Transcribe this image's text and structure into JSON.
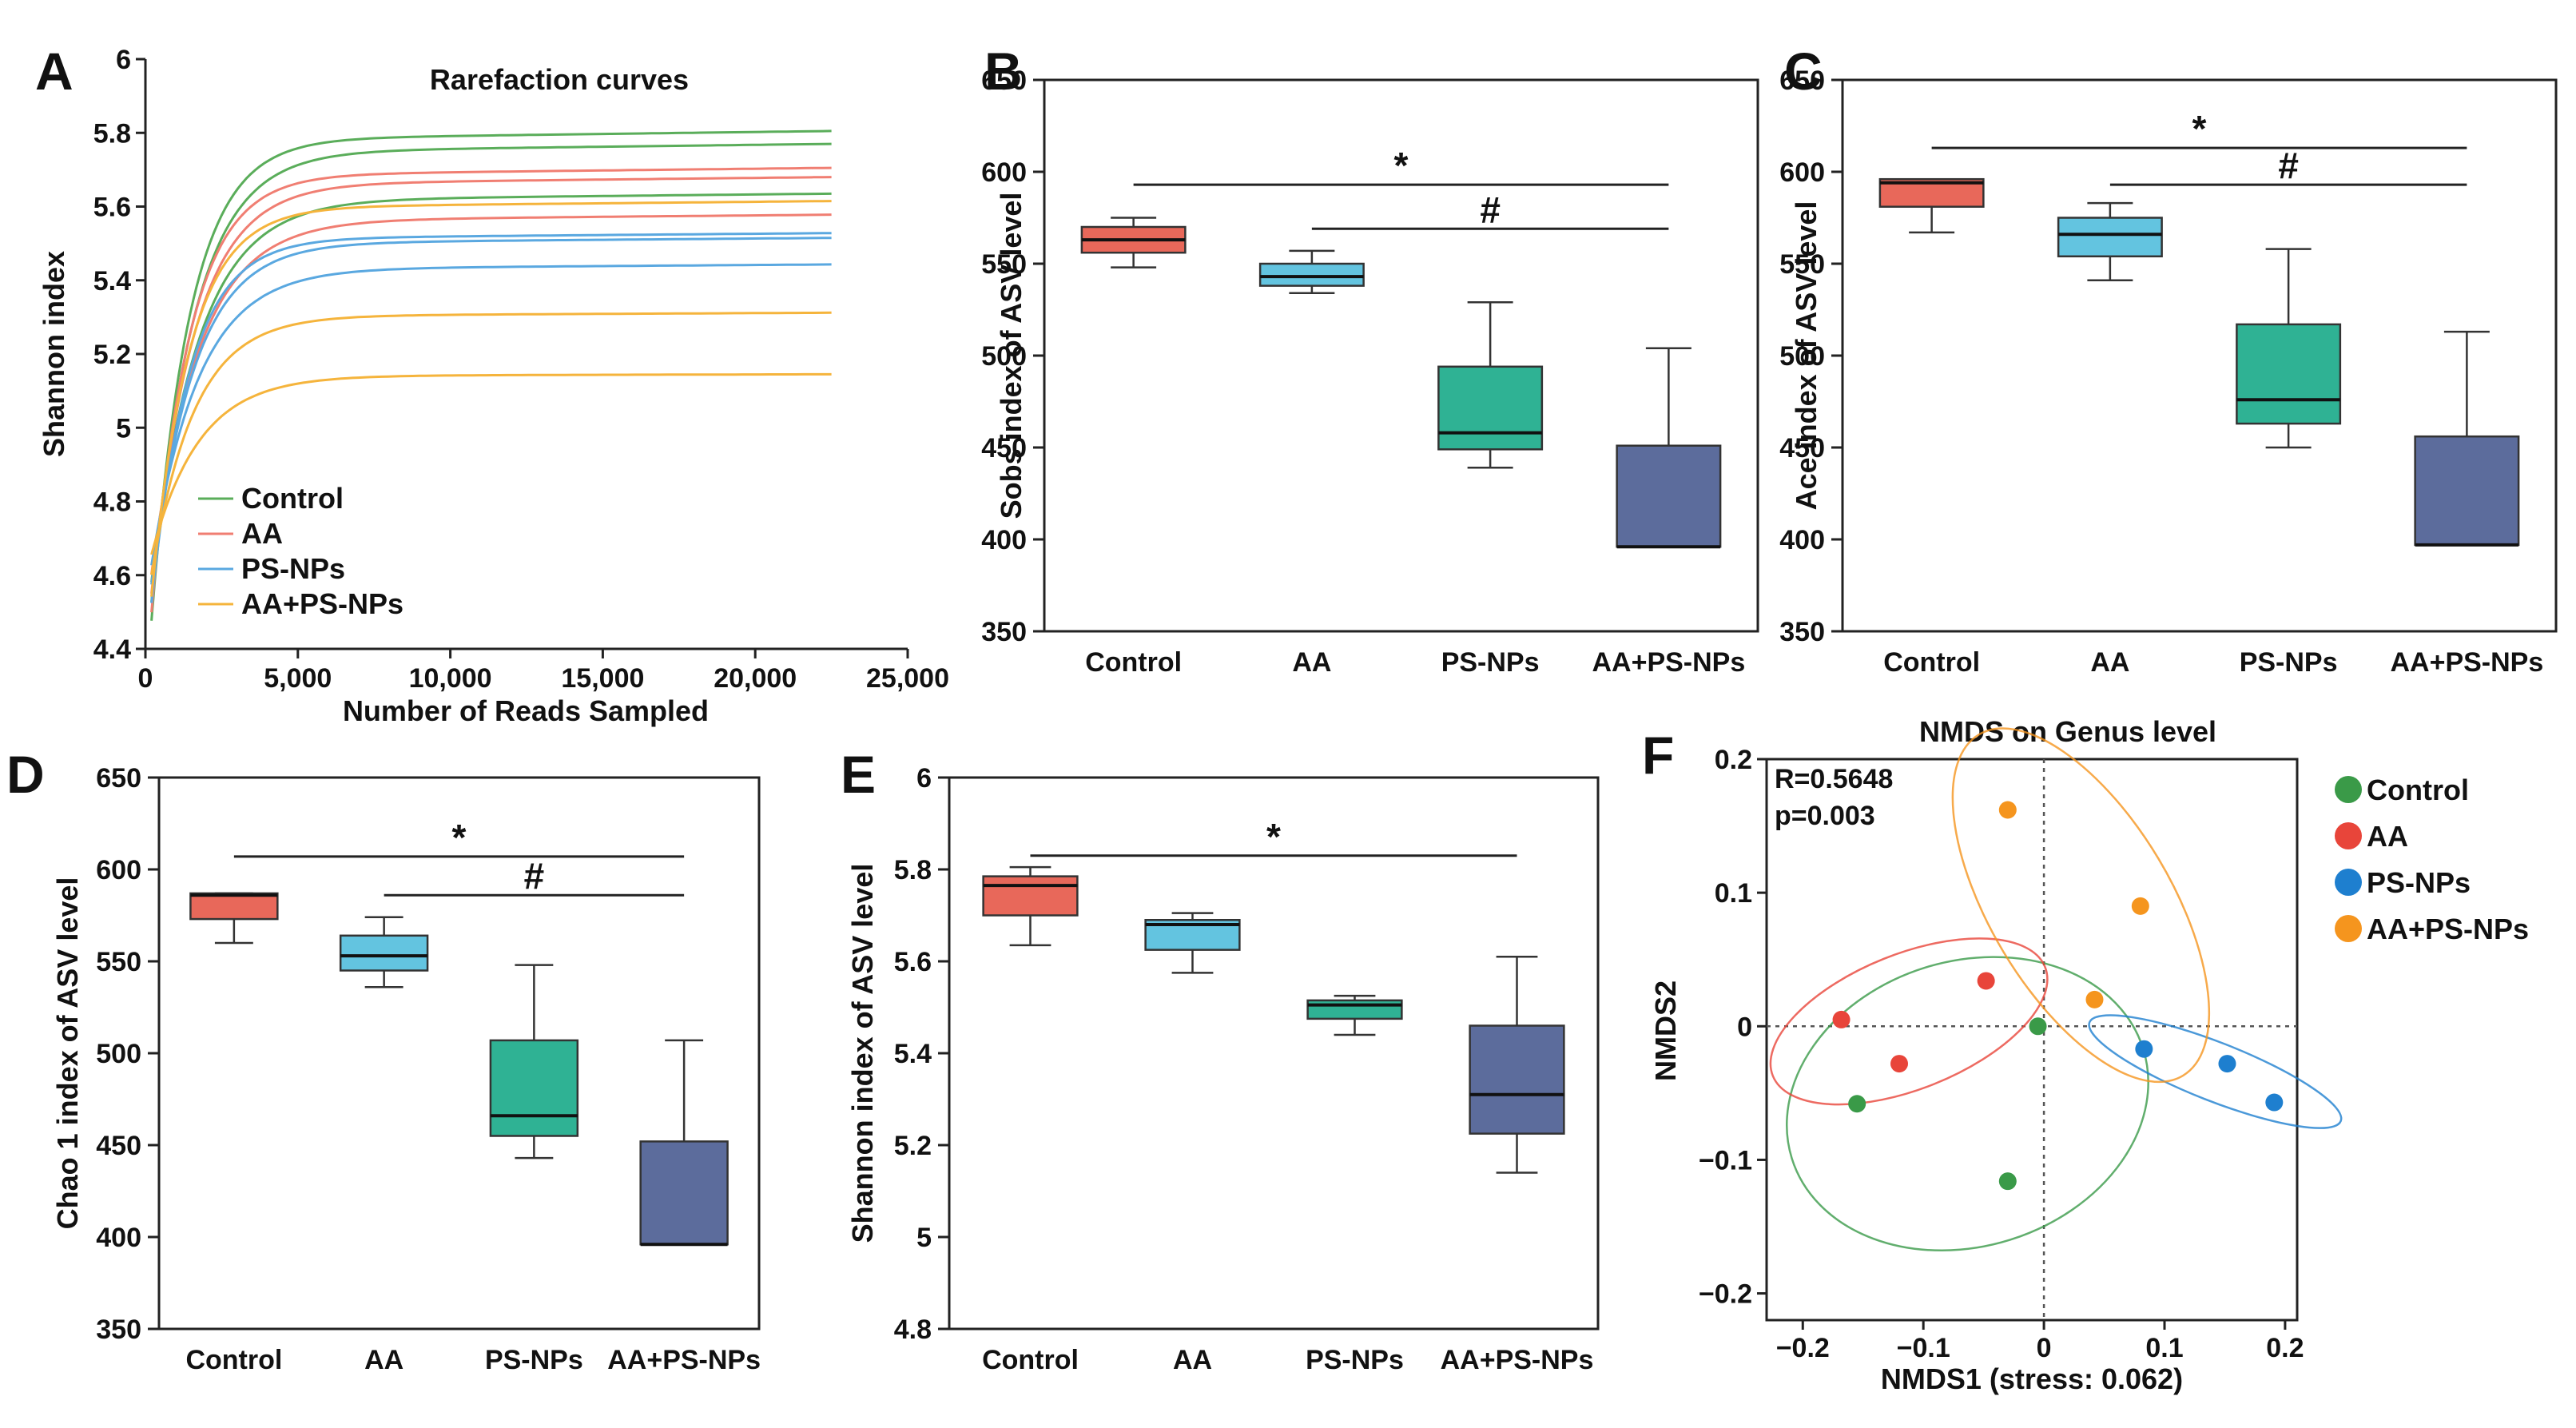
{
  "chart_data": [
    {
      "panel": "A",
      "type": "line",
      "title": "Rarefaction curves",
      "xlabel": "Number of Reads Sampled",
      "ylabel": "Shannon index",
      "xlim": [
        0,
        25000
      ],
      "ylim": [
        4.4,
        6.0
      ],
      "xticks": [
        0,
        5000,
        10000,
        15000,
        20000,
        25000
      ],
      "xtick_labels": [
        "0",
        "5,000",
        "10,000",
        "15,000",
        "20,000",
        "25,000"
      ],
      "yticks": [
        4.4,
        4.6,
        4.8,
        5.0,
        5.2,
        5.4,
        5.6,
        5.8,
        6.0
      ],
      "ytick_labels": [
        "4.4",
        "4.6",
        "4.8",
        "5",
        "5.2",
        "5.4",
        "5.6",
        "5.8",
        "6"
      ],
      "x_max_sampled": 22500,
      "legend_position": "bottom-left",
      "series": [
        {
          "name": "Control",
          "color": "#5aad5a",
          "plateaus": [
            5.805,
            5.77,
            5.635
          ]
        },
        {
          "name": "AA",
          "color": "#f07e72",
          "plateaus": [
            5.705,
            5.68,
            5.578
          ]
        },
        {
          "name": "PS-NPs",
          "color": "#5aa8e0",
          "plateaus": [
            5.528,
            5.515,
            5.443
          ]
        },
        {
          "name": "AA+PS-NPs",
          "color": "#f5b43c",
          "plateaus": [
            5.615,
            5.312,
            5.145
          ]
        }
      ]
    },
    {
      "panel": "B",
      "type": "box",
      "ylabel": "Sobs index of ASV level",
      "ylim": [
        350,
        650
      ],
      "yticks": [
        350,
        400,
        450,
        500,
        550,
        600,
        650
      ],
      "categories": [
        "Control",
        "AA",
        "PS-NPs",
        "AA+PS-NPs"
      ],
      "colors": [
        "#e8685a",
        "#63c4e0",
        "#2fb294",
        "#5c6c9c"
      ],
      "boxes": [
        {
          "min": 548,
          "q1": 556,
          "median": 563,
          "q3": 570,
          "max": 575
        },
        {
          "min": 534,
          "q1": 538,
          "median": 543,
          "q3": 550,
          "max": 557
        },
        {
          "min": 439,
          "q1": 449,
          "median": 458,
          "q3": 494,
          "max": 529
        },
        {
          "min": 396,
          "q1": 396,
          "median": 396,
          "q3": 451,
          "max": 504
        }
      ],
      "brackets": [
        {
          "from": 0,
          "to": 3,
          "y": 593,
          "label": "*"
        },
        {
          "from": 1,
          "to": 3,
          "y": 569,
          "label": "#"
        }
      ]
    },
    {
      "panel": "C",
      "type": "box",
      "ylabel": "Ace index of ASV level",
      "ylim": [
        350,
        650
      ],
      "yticks": [
        350,
        400,
        450,
        500,
        550,
        600,
        650
      ],
      "categories": [
        "Control",
        "AA",
        "PS-NPs",
        "AA+PS-NPs"
      ],
      "colors": [
        "#e8685a",
        "#63c4e0",
        "#2fb294",
        "#5c6c9c"
      ],
      "boxes": [
        {
          "min": 567,
          "q1": 581,
          "median": 594,
          "q3": 596,
          "max": 596
        },
        {
          "min": 541,
          "q1": 554,
          "median": 566,
          "q3": 575,
          "max": 583
        },
        {
          "min": 450,
          "q1": 463,
          "median": 476,
          "q3": 517,
          "max": 558
        },
        {
          "min": 397,
          "q1": 397,
          "median": 397,
          "q3": 456,
          "max": 513
        }
      ],
      "brackets": [
        {
          "from": 0,
          "to": 3,
          "y": 613,
          "label": "*"
        },
        {
          "from": 1,
          "to": 3,
          "y": 593,
          "label": "#"
        }
      ]
    },
    {
      "panel": "D",
      "type": "box",
      "ylabel": "Chao 1 index of ASV level",
      "ylim": [
        350,
        650
      ],
      "yticks": [
        350,
        400,
        450,
        500,
        550,
        600,
        650
      ],
      "categories": [
        "Control",
        "AA",
        "PS-NPs",
        "AA+PS-NPs"
      ],
      "colors": [
        "#e8685a",
        "#63c4e0",
        "#2fb294",
        "#5c6c9c"
      ],
      "boxes": [
        {
          "min": 560,
          "q1": 573,
          "median": 586,
          "q3": 587,
          "max": 587
        },
        {
          "min": 536,
          "q1": 545,
          "median": 553,
          "q3": 564,
          "max": 574
        },
        {
          "min": 443,
          "q1": 455,
          "median": 466,
          "q3": 507,
          "max": 548
        },
        {
          "min": 396,
          "q1": 396,
          "median": 396,
          "q3": 452,
          "max": 507
        }
      ],
      "brackets": [
        {
          "from": 0,
          "to": 3,
          "y": 607,
          "label": "*"
        },
        {
          "from": 1,
          "to": 3,
          "y": 586,
          "label": "#"
        }
      ]
    },
    {
      "panel": "E",
      "type": "box",
      "ylabel": "Shannon index of ASV level",
      "ylim": [
        4.8,
        6.0
      ],
      "yticks": [
        4.8,
        5.0,
        5.2,
        5.4,
        5.6,
        5.8,
        6.0
      ],
      "ytick_labels": [
        "4.8",
        "5",
        "5.2",
        "5.4",
        "5.6",
        "5.8",
        "6"
      ],
      "categories": [
        "Control",
        "AA",
        "PS-NPs",
        "AA+PS-NPs"
      ],
      "colors": [
        "#e8685a",
        "#63c4e0",
        "#2fb294",
        "#5c6c9c"
      ],
      "boxes": [
        {
          "min": 5.635,
          "q1": 5.7,
          "median": 5.765,
          "q3": 5.785,
          "max": 5.805
        },
        {
          "min": 5.575,
          "q1": 5.625,
          "median": 5.68,
          "q3": 5.69,
          "max": 5.705
        },
        {
          "min": 5.44,
          "q1": 5.475,
          "median": 5.505,
          "q3": 5.515,
          "max": 5.525
        },
        {
          "min": 5.14,
          "q1": 5.225,
          "median": 5.31,
          "q3": 5.46,
          "max": 5.61
        }
      ],
      "brackets": [
        {
          "from": 0,
          "to": 3,
          "y": 5.83,
          "label": "*"
        }
      ]
    },
    {
      "panel": "F",
      "type": "scatter",
      "title": "NMDS on Genus level",
      "xlabel": "NMDS1 (stress: 0.062)",
      "ylabel": "NMDS2",
      "xlim": [
        -0.23,
        0.21
      ],
      "ylim": [
        -0.22,
        0.2
      ],
      "xticks": [
        -0.2,
        -0.1,
        0,
        0.1,
        0.2
      ],
      "xtick_labels": [
        "−0.2",
        "−0.1",
        "0",
        "0.1",
        "0.2"
      ],
      "yticks": [
        -0.2,
        -0.1,
        0,
        0.1,
        0.2
      ],
      "ytick_labels": [
        "−0.2",
        "−0.1",
        "0",
        "0.1",
        "0.2"
      ],
      "stats": [
        "R=0.5648",
        "p=0.003"
      ],
      "legend_position": "right",
      "series": [
        {
          "name": "Control",
          "color": "#3a9a48",
          "points": [
            [
              -0.005,
              0.0
            ],
            [
              -0.155,
              -0.058
            ],
            [
              -0.03,
              -0.116
            ]
          ]
        },
        {
          "name": "AA",
          "color": "#e8453a",
          "points": [
            [
              -0.168,
              0.005
            ],
            [
              -0.12,
              -0.028
            ],
            [
              -0.048,
              0.034
            ]
          ]
        },
        {
          "name": "PS-NPs",
          "color": "#1e7fcf",
          "points": [
            [
              0.083,
              -0.017
            ],
            [
              0.152,
              -0.028
            ],
            [
              0.191,
              -0.057
            ]
          ]
        },
        {
          "name": "AA+PS-NPs",
          "color": "#f5951e",
          "points": [
            [
              -0.03,
              0.162
            ],
            [
              0.08,
              0.09
            ],
            [
              0.042,
              0.02
            ]
          ]
        }
      ]
    }
  ]
}
